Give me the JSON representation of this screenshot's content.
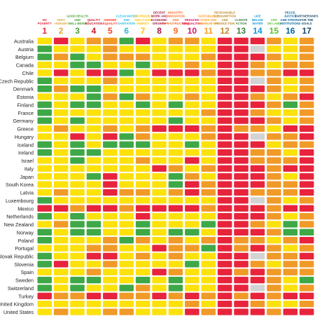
{
  "chart_data": {
    "type": "heatmap",
    "title": "",
    "status_colors": {
      "red": "#e8233c",
      "orange": "#f19a28",
      "yellow": "#fde10b",
      "green": "#3ea846",
      "grey": "#d3d3d3"
    },
    "goals": [
      {
        "number": "1",
        "title": [
          "NO",
          "POVERTY"
        ],
        "color": "#e5243b"
      },
      {
        "number": "2",
        "title": [
          "ZERO",
          "HUNGER"
        ],
        "color": "#dda63a"
      },
      {
        "number": "3",
        "title": [
          "GOOD HEALTH",
          "AND",
          "WELL-BEING"
        ],
        "color": "#4c9f38"
      },
      {
        "number": "4",
        "title": [
          "QUALITY",
          "EDUCATION"
        ],
        "color": "#c5192d"
      },
      {
        "number": "5",
        "title": [
          "GENDER",
          "EQUALITY"
        ],
        "color": "#ff3a21"
      },
      {
        "number": "6",
        "title": [
          "CLEAN WATER",
          "AND",
          "SANITATION"
        ],
        "color": "#26bde2"
      },
      {
        "number": "7",
        "title": [
          "AFFORDABLE",
          "AND CLEAN",
          "ENERGY"
        ],
        "color": "#fcc30b"
      },
      {
        "number": "8",
        "title": [
          "DECENT",
          "WORK AND",
          "ECONOMIC",
          "GROWTH"
        ],
        "color": "#a21942"
      },
      {
        "number": "9",
        "title": [
          "INDUSTRY,",
          "INNOVATION",
          "AND",
          "INFRASTRUCTURE"
        ],
        "color": "#fd6925"
      },
      {
        "number": "10",
        "title": [
          "REDUCED",
          "INEQUALITIES"
        ],
        "color": "#dd1367"
      },
      {
        "number": "11",
        "title": [
          "SUSTAINABLE",
          "CITIES AND",
          "COMMUNITIES"
        ],
        "color": "#fd9d24"
      },
      {
        "number": "12",
        "title": [
          "RESPONSIBLE",
          "CONSUMPTION",
          "AND",
          "PRODUCTION"
        ],
        "color": "#bf8b2e"
      },
      {
        "number": "13",
        "title": [
          "CLIMATE",
          "ACTION"
        ],
        "color": "#3f7e44"
      },
      {
        "number": "14",
        "title": [
          "LIFE",
          "BELOW",
          "WATER"
        ],
        "color": "#0a97d9"
      },
      {
        "number": "15",
        "title": [
          "LIFE",
          "ON LAND"
        ],
        "color": "#56c02b"
      },
      {
        "number": "16",
        "title": [
          "PEACE,",
          "JUSTICE",
          "AND STRONG",
          "INSTITUTIONS"
        ],
        "color": "#00689d"
      },
      {
        "number": "17",
        "title": [
          "PARTNERSHIPS",
          "FOR THE",
          "GOALS"
        ],
        "color": "#19486a"
      }
    ],
    "countries": [
      "Australia",
      "Austria",
      "Belgium",
      "Canada",
      "Chile",
      "Czech Republic",
      "Denmark",
      "Estonia",
      "Finland",
      "France",
      "Germany",
      "Greece",
      "Hungary",
      "Iceland",
      "Ireland",
      "Israel",
      "Italy",
      "Japan",
      "South Korea",
      "Latvia",
      "Luxembourg",
      "Mexico",
      "Netherlands",
      "New Zealand",
      "Norway",
      "Poland",
      "Portugal",
      "Slovak Republic",
      "Slovenia",
      "Spain",
      "Sweden",
      "Switzerland",
      "Turkey",
      "United Kingdom",
      "United States"
    ],
    "values": [
      [
        "yellow",
        "red",
        "yellow",
        "orange",
        "orange",
        "green",
        "red",
        "yellow",
        "orange",
        "orange",
        "yellow",
        "red",
        "red",
        "red",
        "orange",
        "yellow",
        "orange"
      ],
      [
        "green",
        "yellow",
        "yellow",
        "yellow",
        "orange",
        "yellow",
        "yellow",
        "yellow",
        "yellow",
        "yellow",
        "yellow",
        "red",
        "red",
        "grey",
        "yellow",
        "yellow",
        "orange"
      ],
      [
        "green",
        "orange",
        "green",
        "yellow",
        "orange",
        "orange",
        "orange",
        "yellow",
        "yellow",
        "yellow",
        "orange",
        "red",
        "red",
        "red",
        "orange",
        "yellow",
        "orange"
      ],
      [
        "yellow",
        "yellow",
        "green",
        "green",
        "yellow",
        "yellow",
        "green",
        "yellow",
        "yellow",
        "orange",
        "yellow",
        "red",
        "red",
        "orange",
        "yellow",
        "orange",
        "orange"
      ],
      [
        "yellow",
        "red",
        "yellow",
        "red",
        "red",
        "green",
        "yellow",
        "red",
        "red",
        "red",
        "orange",
        "red",
        "red",
        "orange",
        "orange",
        "red",
        "red"
      ],
      [
        "green",
        "yellow",
        "yellow",
        "yellow",
        "orange",
        "yellow",
        "yellow",
        "yellow",
        "yellow",
        "yellow",
        "yellow",
        "red",
        "red",
        "grey",
        "orange",
        "yellow",
        "orange"
      ],
      [
        "green",
        "orange",
        "green",
        "green",
        "yellow",
        "yellow",
        "yellow",
        "yellow",
        "yellow",
        "yellow",
        "yellow",
        "red",
        "red",
        "red",
        "orange",
        "yellow",
        "orange"
      ],
      [
        "yellow",
        "yellow",
        "yellow",
        "green",
        "orange",
        "green",
        "orange",
        "yellow",
        "yellow",
        "orange",
        "yellow",
        "red",
        "red",
        "orange",
        "yellow",
        "orange",
        "red"
      ],
      [
        "green",
        "yellow",
        "green",
        "green",
        "yellow",
        "yellow",
        "green",
        "yellow",
        "green",
        "yellow",
        "yellow",
        "red",
        "red",
        "red",
        "orange",
        "green",
        "orange"
      ],
      [
        "green",
        "yellow",
        "yellow",
        "yellow",
        "yellow",
        "yellow",
        "yellow",
        "yellow",
        "yellow",
        "yellow",
        "orange",
        "red",
        "red",
        "orange",
        "yellow",
        "yellow",
        "orange"
      ],
      [
        "green",
        "yellow",
        "green",
        "yellow",
        "yellow",
        "yellow",
        "yellow",
        "yellow",
        "green",
        "yellow",
        "yellow",
        "red",
        "red",
        "red",
        "orange",
        "yellow",
        "orange"
      ],
      [
        "yellow",
        "orange",
        "yellow",
        "yellow",
        "orange",
        "yellow",
        "orange",
        "red",
        "red",
        "red",
        "orange",
        "red",
        "orange",
        "orange",
        "yellow",
        "red",
        "red"
      ],
      [
        "yellow",
        "yellow",
        "red",
        "yellow",
        "red",
        "green",
        "orange",
        "yellow",
        "yellow",
        "yellow",
        "orange",
        "red",
        "red",
        "grey",
        "orange",
        "orange",
        "red"
      ],
      [
        "green",
        "yellow",
        "green",
        "yellow",
        "green",
        "green",
        "green",
        "yellow",
        "yellow",
        "green",
        "yellow",
        "red",
        "red",
        "red",
        "yellow",
        "orange",
        "orange"
      ],
      [
        "green",
        "yellow",
        "green",
        "green",
        "yellow",
        "yellow",
        "yellow",
        "yellow",
        "yellow",
        "yellow",
        "yellow",
        "red",
        "red",
        "orange",
        "orange",
        "yellow",
        "red"
      ],
      [
        "yellow",
        "yellow",
        "green",
        "yellow",
        "yellow",
        "yellow",
        "orange",
        "yellow",
        "yellow",
        "red",
        "yellow",
        "red",
        "red",
        "orange",
        "orange",
        "orange",
        "red"
      ],
      [
        "yellow",
        "yellow",
        "yellow",
        "yellow",
        "yellow",
        "yellow",
        "yellow",
        "red",
        "orange",
        "yellow",
        "orange",
        "red",
        "red",
        "red",
        "orange",
        "red",
        "red"
      ],
      [
        "yellow",
        "yellow",
        "yellow",
        "green",
        "red",
        "yellow",
        "yellow",
        "yellow",
        "green",
        "orange",
        "yellow",
        "red",
        "red",
        "red",
        "orange",
        "yellow",
        "red"
      ],
      [
        "yellow",
        "yellow",
        "yellow",
        "yellow",
        "red",
        "yellow",
        "yellow",
        "yellow",
        "green",
        "red",
        "orange",
        "red",
        "red",
        "red",
        "orange",
        "orange",
        "red"
      ],
      [
        "yellow",
        "orange",
        "yellow",
        "yellow",
        "red",
        "orange",
        "orange",
        "yellow",
        "orange",
        "red",
        "orange",
        "red",
        "red",
        "orange",
        "orange",
        "orange",
        "red"
      ],
      [
        "green",
        "yellow",
        "yellow",
        "yellow",
        "yellow",
        "yellow",
        "yellow",
        "yellow",
        "yellow",
        "yellow",
        "yellow",
        "red",
        "red",
        "grey",
        "orange",
        "yellow",
        "orange"
      ],
      [
        "red",
        "red",
        "orange",
        "red",
        "red",
        "orange",
        "red",
        "red",
        "red",
        "red",
        "orange",
        "red",
        "red",
        "red",
        "orange",
        "red",
        "red"
      ],
      [
        "green",
        "yellow",
        "green",
        "yellow",
        "yellow",
        "yellow",
        "red",
        "yellow",
        "yellow",
        "yellow",
        "yellow",
        "red",
        "red",
        "red",
        "orange",
        "yellow",
        "orange"
      ],
      [
        "yellow",
        "orange",
        "green",
        "green",
        "yellow",
        "yellow",
        "green",
        "yellow",
        "yellow",
        "yellow",
        "green",
        "red",
        "red",
        "orange",
        "yellow",
        "green",
        "orange"
      ],
      [
        "green",
        "yellow",
        "green",
        "green",
        "yellow",
        "yellow",
        "green",
        "yellow",
        "green",
        "green",
        "yellow",
        "red",
        "red",
        "red",
        "orange",
        "green",
        "green"
      ],
      [
        "green",
        "yellow",
        "yellow",
        "yellow",
        "orange",
        "green",
        "orange",
        "yellow",
        "orange",
        "yellow",
        "orange",
        "red",
        "orange",
        "orange",
        "yellow",
        "orange",
        "red"
      ],
      [
        "yellow",
        "yellow",
        "yellow",
        "orange",
        "orange",
        "yellow",
        "yellow",
        "red",
        "orange",
        "orange",
        "green",
        "red",
        "orange",
        "red",
        "orange",
        "yellow",
        "orange"
      ],
      [
        "green",
        "yellow",
        "yellow",
        "red",
        "red",
        "yellow",
        "orange",
        "yellow",
        "orange",
        "yellow",
        "yellow",
        "red",
        "red",
        "grey",
        "orange",
        "orange",
        "red"
      ],
      [
        "green",
        "red",
        "yellow",
        "yellow",
        "orange",
        "yellow",
        "yellow",
        "yellow",
        "yellow",
        "green",
        "yellow",
        "red",
        "red",
        "orange",
        "yellow",
        "orange",
        "orange"
      ],
      [
        "yellow",
        "yellow",
        "yellow",
        "orange",
        "yellow",
        "yellow",
        "yellow",
        "red",
        "orange",
        "yellow",
        "yellow",
        "red",
        "orange",
        "red",
        "orange",
        "orange",
        "orange"
      ],
      [
        "green",
        "yellow",
        "green",
        "green",
        "yellow",
        "yellow",
        "green",
        "yellow",
        "green",
        "yellow",
        "yellow",
        "red",
        "red",
        "red",
        "orange",
        "yellow",
        "green"
      ],
      [
        "green",
        "yellow",
        "green",
        "yellow",
        "yellow",
        "green",
        "orange",
        "yellow",
        "green",
        "yellow",
        "yellow",
        "red",
        "red",
        "grey",
        "orange",
        "yellow",
        "orange"
      ],
      [
        "red",
        "orange",
        "orange",
        "red",
        "red",
        "orange",
        "orange",
        "red",
        "orange",
        "red",
        "orange",
        "red",
        "orange",
        "red",
        "orange",
        "red",
        "red"
      ],
      [
        "yellow",
        "yellow",
        "yellow",
        "yellow",
        "yellow",
        "yellow",
        "yellow",
        "yellow",
        "yellow",
        "orange",
        "yellow",
        "red",
        "red",
        "orange",
        "yellow",
        "yellow",
        "orange"
      ],
      [
        "yellow",
        "orange",
        "yellow",
        "yellow",
        "orange",
        "orange",
        "yellow",
        "yellow",
        "yellow",
        "red",
        "orange",
        "red",
        "red",
        "red",
        "orange",
        "red",
        "red"
      ]
    ]
  }
}
